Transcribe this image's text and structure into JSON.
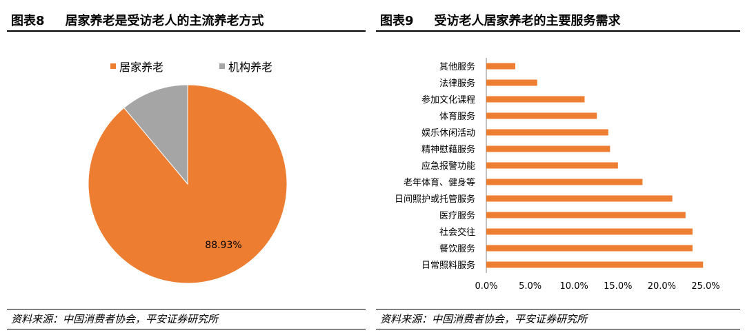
{
  "left": {
    "fig_label": "图表8",
    "title": "居家养老是受访老人的主流养老方式",
    "source": "资料来源：中国消费者协会，平安证券研究所",
    "chart_data": {
      "type": "pie",
      "title": "居家养老是受访老人的主流养老方式",
      "slices": [
        {
          "label": "居家养老",
          "value": 88.93,
          "color": "#ED7D31"
        },
        {
          "label": "机构养老",
          "value": 11.07,
          "color": "#A5A5A5"
        }
      ],
      "data_label": "88.93%",
      "legend_position": "top"
    }
  },
  "right": {
    "fig_label": "图表9",
    "title": "受访老人居家养老的主要服务需求",
    "source": "资料来源：中国消费者协会，平安证券研究所",
    "chart_data": {
      "type": "bar",
      "orientation": "horizontal",
      "title": "受访老人居家养老的主要服务需求",
      "color": "#ED7D31",
      "categories": [
        "其他服务",
        "法律服务",
        "参加文化课程",
        "体育服务",
        "娱乐休闲活动",
        "精神慰藉服务",
        "应急报警功能",
        "老年体育、健身等",
        "日间照护或托管服务",
        "医疗服务",
        "社会交往",
        "餐饮服务",
        "日常照料服务"
      ],
      "values": [
        3.3,
        5.8,
        11.2,
        12.6,
        13.9,
        14.1,
        15.0,
        17.8,
        21.2,
        22.7,
        23.5,
        23.5,
        24.7
      ],
      "xlim": [
        0,
        25
      ],
      "xticks": [
        0,
        5,
        10,
        15,
        20,
        25
      ],
      "xtick_labels": [
        "0.0%",
        "5.0%",
        "10.0%",
        "15.0%",
        "20.0%",
        "25.0%"
      ]
    }
  }
}
